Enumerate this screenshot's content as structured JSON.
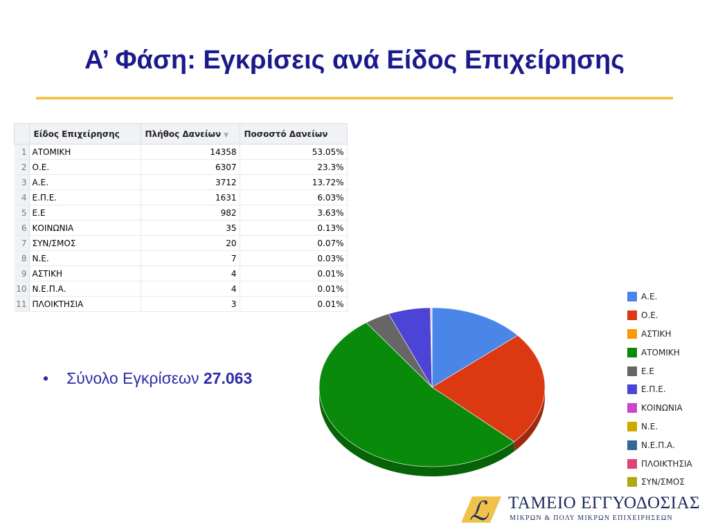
{
  "title": "Α’ Φάση: Εγκρίσεις ανά Είδος Επιχείρησης",
  "table": {
    "headers": [
      "Είδος Επιχείρησης",
      "Πλήθος Δανείων",
      "Ποσοστό Δανείων"
    ],
    "sort_indicator": "▼",
    "rows": [
      {
        "n": "1",
        "type": "ΑΤΟΜΙΚΗ",
        "count": "14358",
        "pct": "53.05%"
      },
      {
        "n": "2",
        "type": "Ο.Ε.",
        "count": "6307",
        "pct": "23.3%"
      },
      {
        "n": "3",
        "type": "Α.Ε.",
        "count": "3712",
        "pct": "13.72%"
      },
      {
        "n": "4",
        "type": "Ε.Π.Ε.",
        "count": "1631",
        "pct": "6.03%"
      },
      {
        "n": "5",
        "type": "Ε.Ε",
        "count": "982",
        "pct": "3.63%"
      },
      {
        "n": "6",
        "type": "ΚΟΙΝΩΝΙΑ",
        "count": "35",
        "pct": "0.13%"
      },
      {
        "n": "7",
        "type": "ΣΥΝ/ΣΜΟΣ",
        "count": "20",
        "pct": "0.07%"
      },
      {
        "n": "8",
        "type": "Ν.Ε.",
        "count": "7",
        "pct": "0.03%"
      },
      {
        "n": "9",
        "type": "ΑΣΤΙΚΗ",
        "count": "4",
        "pct": "0.01%"
      },
      {
        "n": "10",
        "type": "Ν.Ε.Π.Α.",
        "count": "4",
        "pct": "0.01%"
      },
      {
        "n": "11",
        "type": "ΠΛΟΙΚΤΗΣΙΑ",
        "count": "3",
        "pct": "0.01%"
      }
    ]
  },
  "bullet": {
    "label": "Σύνολο Εγκρίσεων",
    "value": "27.063"
  },
  "chart_data": {
    "type": "pie",
    "title": "",
    "slices": [
      {
        "name": "Α.Ε.",
        "value": 3712,
        "color": "#4a86e8"
      },
      {
        "name": "Ο.Ε.",
        "value": 6307,
        "color": "#dc3912"
      },
      {
        "name": "ΑΣΤΙΚΗ",
        "value": 4,
        "color": "#ff9900"
      },
      {
        "name": "ΑΤΟΜΙΚΗ",
        "value": 14358,
        "color": "#0a8a0a"
      },
      {
        "name": "Ε.Ε",
        "value": 982,
        "color": "#666666"
      },
      {
        "name": "Ε.Π.Ε.",
        "value": 1631,
        "color": "#4b44d6"
      },
      {
        "name": "ΚΟΙΝΩΝΙΑ",
        "value": 35,
        "color": "#cc44cc"
      },
      {
        "name": "Ν.Ε.",
        "value": 7,
        "color": "#ccaa00"
      },
      {
        "name": "Ν.Ε.Π.Α.",
        "value": 4,
        "color": "#336699"
      },
      {
        "name": "ΠΛΟΙΚΤΗΣΙΑ",
        "value": 3,
        "color": "#dd4477"
      },
      {
        "name": "ΣΥΝ/ΣΜΟΣ",
        "value": 20,
        "color": "#aaaa11"
      }
    ],
    "legend": "right"
  },
  "logo": {
    "name": "ΤΑΜΕΙΟ ΕΓΓΥΟΔΟΣΙΑΣ",
    "subtitle": "ΜΙΚΡΩΝ & ΠΟΛΥ ΜΙΚΡΩΝ ΕΠΙΧΕΙΡΗΣΕΩΝ",
    "color": "#1a2a5c"
  }
}
